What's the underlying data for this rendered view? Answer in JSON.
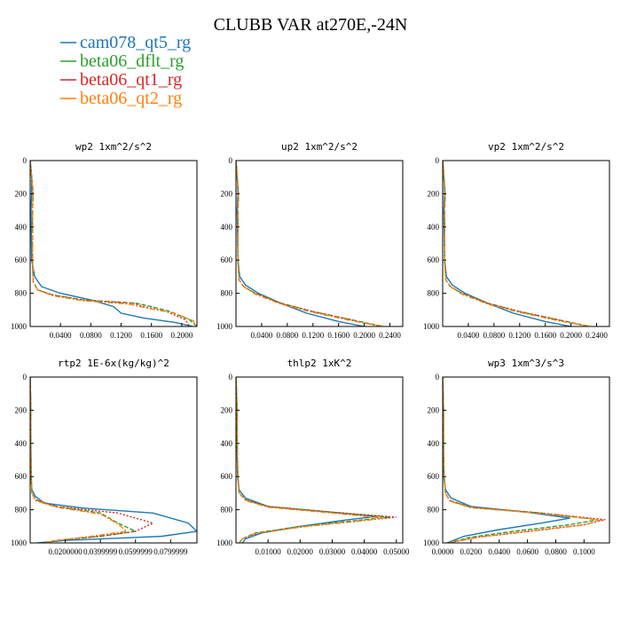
{
  "title": "CLUBB VAR at270E,-24N",
  "legend": [
    {
      "name": "cam078_qt5_rg",
      "color": "#1f77b4",
      "dash": ""
    },
    {
      "name": "beta06_dflt_rg",
      "color": "#2ca02c",
      "dash": "5,2"
    },
    {
      "name": "beta06_qt1_rg",
      "color": "#d62728",
      "dash": "2,2"
    },
    {
      "name": "beta06_qt2_rg",
      "color": "#ff7f0e",
      "dash": "6,2,2,2"
    }
  ],
  "chart_data": [
    {
      "type": "line",
      "title": "wp2  1xm^2/s^2",
      "xlim": [
        0,
        0.22
      ],
      "ylim": [
        0,
        1000
      ],
      "y_reversed": true,
      "xticks": [
        "0.0400",
        "0.0800",
        "0.1200",
        "0.1600",
        "0.2000"
      ],
      "xtick_values": [
        0.04,
        0.08,
        0.12,
        0.16,
        0.2
      ],
      "yticks": [
        "0",
        "200",
        "400",
        "600",
        "800",
        "1000"
      ],
      "ytick_values": [
        0,
        200,
        400,
        600,
        800,
        1000
      ],
      "series": [
        {
          "x": [
            0,
            0.002,
            0.002,
            0.001,
            0.002,
            0.006,
            0.015,
            0.04,
            0.08,
            0.11,
            0.12,
            0.15,
            0.19,
            0.215
          ],
          "y": [
            0,
            100,
            200,
            300,
            600,
            700,
            760,
            800,
            840,
            880,
            920,
            950,
            975,
            1000
          ]
        },
        {
          "x": [
            0,
            0.002,
            0.004,
            0.003,
            0.003,
            0.004,
            0.01,
            0.03,
            0.07,
            0.14,
            0.16,
            0.185,
            0.21,
            0.22
          ],
          "y": [
            0,
            100,
            200,
            300,
            600,
            730,
            780,
            810,
            840,
            860,
            880,
            910,
            960,
            1000
          ]
        },
        {
          "x": [
            0,
            0.002,
            0.004,
            0.003,
            0.003,
            0.004,
            0.01,
            0.03,
            0.07,
            0.135,
            0.15,
            0.18,
            0.205,
            0.21
          ],
          "y": [
            0,
            100,
            200,
            300,
            600,
            730,
            780,
            810,
            840,
            860,
            880,
            910,
            960,
            1000
          ]
        },
        {
          "x": [
            0,
            0.002,
            0.004,
            0.003,
            0.003,
            0.004,
            0.01,
            0.03,
            0.07,
            0.13,
            0.15,
            0.19,
            0.215,
            0.22
          ],
          "y": [
            0,
            100,
            200,
            300,
            600,
            730,
            780,
            815,
            845,
            865,
            885,
            920,
            965,
            1000
          ]
        }
      ]
    },
    {
      "type": "line",
      "title": "up2  1xm^2/s^2",
      "xlim": [
        0,
        0.26
      ],
      "ylim": [
        0,
        1000
      ],
      "y_reversed": true,
      "xticks": [
        "0.0400",
        "0.0800",
        "0.1200",
        "0.1600",
        "0.2000",
        "0.2400"
      ],
      "xtick_values": [
        0.04,
        0.08,
        0.12,
        0.16,
        0.2,
        0.24
      ],
      "yticks": [
        "0",
        "200",
        "400",
        "600",
        "800",
        "1000"
      ],
      "ytick_values": [
        0,
        200,
        400,
        600,
        800,
        1000
      ],
      "series": [
        {
          "x": [
            0,
            0.002,
            0.003,
            0.002,
            0.003,
            0.006,
            0.015,
            0.035,
            0.07,
            0.11,
            0.16,
            0.2
          ],
          "y": [
            0,
            100,
            200,
            300,
            600,
            700,
            750,
            800,
            860,
            920,
            970,
            1000
          ]
        },
        {
          "x": [
            0,
            0.002,
            0.004,
            0.003,
            0.003,
            0.005,
            0.012,
            0.03,
            0.07,
            0.12,
            0.18,
            0.23
          ],
          "y": [
            0,
            100,
            200,
            300,
            600,
            720,
            760,
            800,
            860,
            910,
            960,
            1000
          ]
        },
        {
          "x": [
            0,
            0.002,
            0.004,
            0.003,
            0.003,
            0.005,
            0.012,
            0.03,
            0.07,
            0.12,
            0.18,
            0.225
          ],
          "y": [
            0,
            100,
            200,
            300,
            600,
            720,
            760,
            800,
            860,
            910,
            960,
            1000
          ]
        },
        {
          "x": [
            0,
            0.002,
            0.004,
            0.003,
            0.003,
            0.005,
            0.012,
            0.03,
            0.07,
            0.12,
            0.18,
            0.23
          ],
          "y": [
            0,
            100,
            200,
            300,
            600,
            720,
            760,
            805,
            865,
            915,
            965,
            1000
          ]
        }
      ]
    },
    {
      "type": "line",
      "title": "vp2  1xm^2/s^2",
      "xlim": [
        0,
        0.26
      ],
      "ylim": [
        0,
        1000
      ],
      "y_reversed": true,
      "xticks": [
        "0.0400",
        "0.0800",
        "0.1200",
        "0.1600",
        "0.2000",
        "0.2400"
      ],
      "xtick_values": [
        0.04,
        0.08,
        0.12,
        0.16,
        0.2,
        0.24
      ],
      "yticks": [
        "0",
        "200",
        "400",
        "600",
        "800",
        "1000"
      ],
      "ytick_values": [
        0,
        200,
        400,
        600,
        800,
        1000
      ],
      "series": [
        {
          "x": [
            0,
            0.002,
            0.003,
            0.002,
            0.003,
            0.006,
            0.015,
            0.035,
            0.07,
            0.11,
            0.16,
            0.2
          ],
          "y": [
            0,
            100,
            200,
            300,
            600,
            700,
            750,
            800,
            860,
            920,
            970,
            1000
          ]
        },
        {
          "x": [
            0,
            0.002,
            0.004,
            0.003,
            0.003,
            0.005,
            0.012,
            0.03,
            0.07,
            0.12,
            0.18,
            0.23
          ],
          "y": [
            0,
            100,
            200,
            300,
            600,
            720,
            760,
            800,
            860,
            910,
            960,
            1000
          ]
        },
        {
          "x": [
            0,
            0.002,
            0.004,
            0.003,
            0.003,
            0.005,
            0.012,
            0.03,
            0.07,
            0.12,
            0.18,
            0.225
          ],
          "y": [
            0,
            100,
            200,
            300,
            600,
            720,
            760,
            800,
            860,
            910,
            960,
            1000
          ]
        },
        {
          "x": [
            0,
            0.002,
            0.004,
            0.003,
            0.003,
            0.005,
            0.012,
            0.03,
            0.07,
            0.12,
            0.18,
            0.23
          ],
          "y": [
            0,
            100,
            200,
            300,
            600,
            720,
            760,
            805,
            865,
            915,
            965,
            1000
          ]
        }
      ]
    },
    {
      "type": "line",
      "title": "rtp2  1E-6x(kg/kg)^2",
      "xlim": [
        0,
        9.5e-05
      ],
      "ylim": [
        0,
        1000
      ],
      "y_reversed": true,
      "xticks": [
        "0.0200000",
        "0.0399999",
        "0.0599999",
        "0.0799999"
      ],
      "xtick_values": [
        2e-05,
        4e-05,
        6e-05,
        8e-05
      ],
      "yticks": [
        "0",
        "200",
        "400",
        "600",
        "800",
        "1000"
      ],
      "ytick_values": [
        0,
        200,
        400,
        600,
        800,
        1000
      ],
      "series": [
        {
          "x": [
            0,
            2e-07,
            3e-07,
            3e-07,
            5e-07,
            1e-06,
            3e-06,
            8e-06,
            3e-05,
            7e-05,
            9e-05,
            9.5e-05,
            7.5e-05,
            2e-05,
            4e-06
          ],
          "y": [
            0,
            100,
            200,
            400,
            600,
            680,
            720,
            760,
            790,
            820,
            880,
            930,
            960,
            985,
            1000
          ]
        },
        {
          "x": [
            0,
            2e-07,
            4e-07,
            4e-07,
            6e-07,
            1e-06,
            3e-06,
            1.5e-05,
            4e-05,
            5e-05,
            6e-05,
            4e-05,
            1.5e-05,
            8e-06
          ],
          "y": [
            0,
            100,
            200,
            400,
            600,
            700,
            740,
            780,
            820,
            880,
            930,
            960,
            985,
            1000
          ]
        },
        {
          "x": [
            0,
            2e-07,
            4e-07,
            4e-07,
            6e-07,
            1e-06,
            3e-06,
            1.5e-05,
            5e-05,
            7e-05,
            6e-05,
            4e-05,
            1.5e-05,
            8e-06
          ],
          "y": [
            0,
            100,
            200,
            400,
            600,
            700,
            740,
            780,
            820,
            880,
            930,
            960,
            985,
            1000
          ]
        },
        {
          "x": [
            0,
            2e-07,
            4e-07,
            4e-07,
            6e-07,
            1e-06,
            3e-06,
            1.5e-05,
            4e-05,
            5e-05,
            5.5e-05,
            3.5e-05,
            1.5e-05,
            8e-06
          ],
          "y": [
            0,
            100,
            200,
            400,
            600,
            700,
            745,
            785,
            825,
            885,
            930,
            960,
            985,
            1000
          ]
        }
      ]
    },
    {
      "type": "line",
      "title": "thlp2  1xK^2",
      "xlim": [
        0,
        0.052
      ],
      "ylim": [
        0,
        1000
      ],
      "y_reversed": true,
      "xticks": [
        "0.01000",
        "0.02000",
        "0.03000",
        "0.04000",
        "0.05000"
      ],
      "xtick_values": [
        0.01,
        0.02,
        0.03,
        0.04,
        0.05
      ],
      "yticks": [
        "0",
        "200",
        "400",
        "600",
        "800",
        "1000"
      ],
      "ytick_values": [
        0,
        200,
        400,
        600,
        800,
        1000
      ],
      "series": [
        {
          "x": [
            0,
            0.0002,
            0.0003,
            0.0003,
            0.0005,
            0.001,
            0.003,
            0.01,
            0.03,
            0.044,
            0.035,
            0.02,
            0.008,
            0.003,
            0.002
          ],
          "y": [
            0,
            100,
            200,
            400,
            600,
            680,
            730,
            780,
            815,
            840,
            860,
            900,
            940,
            975,
            1000
          ]
        },
        {
          "x": [
            0,
            0.0002,
            0.0004,
            0.0004,
            0.0006,
            0.001,
            0.003,
            0.01,
            0.03,
            0.048,
            0.04,
            0.02,
            0.006,
            0.002,
            0.001
          ],
          "y": [
            0,
            100,
            200,
            400,
            600,
            700,
            740,
            780,
            815,
            845,
            860,
            900,
            940,
            975,
            1000
          ]
        },
        {
          "x": [
            0,
            0.0002,
            0.0004,
            0.0004,
            0.0006,
            0.001,
            0.003,
            0.01,
            0.03,
            0.05,
            0.042,
            0.022,
            0.007,
            0.002,
            0.001
          ],
          "y": [
            0,
            100,
            200,
            400,
            600,
            700,
            740,
            780,
            815,
            845,
            860,
            900,
            940,
            975,
            1000
          ]
        },
        {
          "x": [
            0,
            0.0002,
            0.0004,
            0.0004,
            0.0006,
            0.001,
            0.003,
            0.01,
            0.03,
            0.046,
            0.04,
            0.02,
            0.006,
            0.002,
            0.001
          ],
          "y": [
            0,
            100,
            200,
            400,
            600,
            700,
            745,
            785,
            820,
            850,
            865,
            905,
            942,
            975,
            1000
          ]
        }
      ]
    },
    {
      "type": "line",
      "title": "wp3  1xm^3/s^3",
      "xlim": [
        0,
        0.118
      ],
      "ylim": [
        0,
        1000
      ],
      "y_reversed": true,
      "xticks": [
        "0.0000",
        "0.0200",
        "0.0400",
        "0.0600",
        "0.0800",
        "0.1000"
      ],
      "xtick_values": [
        0,
        0.02,
        0.04,
        0.06,
        0.08,
        0.1
      ],
      "yticks": [
        "0",
        "200",
        "400",
        "600",
        "800",
        "1000"
      ],
      "ytick_values": [
        0,
        200,
        400,
        600,
        800,
        1000
      ],
      "series": [
        {
          "x": [
            0,
            0.0003,
            0.0005,
            0.0005,
            0.0008,
            0.002,
            0.006,
            0.02,
            0.06,
            0.09,
            0.07,
            0.04,
            0.015,
            0.003
          ],
          "y": [
            0,
            100,
            200,
            400,
            600,
            680,
            730,
            780,
            815,
            850,
            880,
            920,
            960,
            1000
          ]
        },
        {
          "x": [
            0,
            0.0003,
            0.0006,
            0.0006,
            0.001,
            0.002,
            0.005,
            0.02,
            0.07,
            0.11,
            0.09,
            0.05,
            0.02,
            0.004
          ],
          "y": [
            0,
            100,
            200,
            400,
            600,
            700,
            745,
            785,
            820,
            860,
            890,
            930,
            965,
            1000
          ]
        },
        {
          "x": [
            0,
            0.0003,
            0.0006,
            0.0006,
            0.001,
            0.002,
            0.005,
            0.02,
            0.07,
            0.115,
            0.1,
            0.06,
            0.025,
            0.004
          ],
          "y": [
            0,
            100,
            200,
            400,
            600,
            700,
            745,
            785,
            820,
            860,
            890,
            930,
            965,
            1000
          ]
        },
        {
          "x": [
            0,
            0.0003,
            0.0006,
            0.0006,
            0.001,
            0.002,
            0.005,
            0.02,
            0.07,
            0.112,
            0.1,
            0.06,
            0.025,
            0.004
          ],
          "y": [
            0,
            100,
            200,
            400,
            600,
            700,
            748,
            788,
            822,
            862,
            892,
            932,
            966,
            1000
          ]
        }
      ]
    }
  ]
}
